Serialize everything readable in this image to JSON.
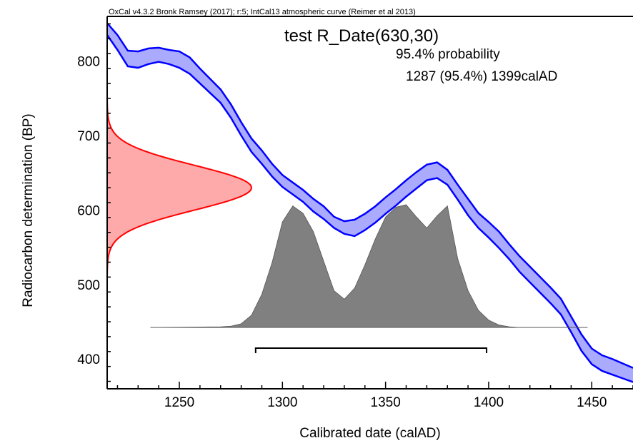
{
  "chart_data": {
    "type": "area",
    "header": "OxCal v4.3.2 Bronk Ramsey (2017); r:5; IntCal13 atmospheric curve (Reimer et al 2013)",
    "title": "test R_Date(630,30)",
    "probability_label": "95.4% probability",
    "range_label": "1287 (95.4%) 1399calAD",
    "xlabel": "Calibrated date (calAD)",
    "ylabel": "Radiocarbon determination (BP)",
    "xlim": [
      1215,
      1470
    ],
    "ylim": [
      360,
      860
    ],
    "x_ticks": [
      1250,
      1300,
      1350,
      1400,
      1450
    ],
    "y_ticks": [
      400,
      500,
      600,
      700,
      800
    ],
    "colors": {
      "curve_fill": "#aaaaff",
      "curve_line": "#0000ff",
      "date_fill": "#ffaaaa",
      "date_line": "#ff0000",
      "posterior_fill": "#808080"
    },
    "calibration_curve": {
      "x": [
        1215,
        1220,
        1225,
        1230,
        1235,
        1240,
        1245,
        1250,
        1255,
        1260,
        1265,
        1270,
        1275,
        1280,
        1285,
        1290,
        1295,
        1300,
        1305,
        1310,
        1315,
        1320,
        1325,
        1330,
        1335,
        1340,
        1345,
        1350,
        1355,
        1360,
        1365,
        1370,
        1375,
        1380,
        1385,
        1390,
        1395,
        1400,
        1405,
        1410,
        1415,
        1420,
        1425,
        1430,
        1435,
        1440,
        1445,
        1450,
        1455,
        1460,
        1465,
        1470
      ],
      "upper": [
        851,
        835,
        814,
        813,
        817,
        818,
        815,
        813,
        805,
        790,
        776,
        762,
        742,
        718,
        696,
        680,
        662,
        647,
        637,
        627,
        615,
        605,
        591,
        585,
        587,
        595,
        605,
        617,
        628,
        640,
        651,
        661,
        664,
        654,
        634,
        615,
        596,
        584,
        571,
        554,
        538,
        524,
        510,
        496,
        481,
        457,
        433,
        414,
        405,
        400,
        394,
        388
      ],
      "lower": [
        835,
        815,
        793,
        791,
        796,
        799,
        796,
        791,
        783,
        770,
        757,
        744,
        724,
        700,
        678,
        662,
        645,
        631,
        621,
        611,
        598,
        588,
        576,
        568,
        565,
        573,
        583,
        595,
        606,
        618,
        629,
        640,
        643,
        634,
        614,
        593,
        576,
        563,
        549,
        534,
        517,
        503,
        489,
        475,
        460,
        436,
        411,
        393,
        384,
        379,
        374,
        369
      ]
    },
    "radiocarbon_date": {
      "mean": 630,
      "sd": 30
    },
    "posterior": {
      "x": [
        1236,
        1270,
        1275,
        1280,
        1285,
        1290,
        1295,
        1300,
        1305,
        1310,
        1315,
        1320,
        1325,
        1330,
        1335,
        1340,
        1345,
        1350,
        1355,
        1360,
        1365,
        1370,
        1375,
        1380,
        1385,
        1390,
        1395,
        1400,
        1405,
        1410,
        1415,
        1420,
        1448
      ],
      "y": [
        0,
        0.005,
        0.01,
        0.03,
        0.1,
        0.27,
        0.53,
        0.86,
        0.99,
        0.93,
        0.78,
        0.54,
        0.3,
        0.23,
        0.32,
        0.51,
        0.72,
        0.9,
        0.98,
        1.0,
        0.9,
        0.81,
        0.91,
        0.99,
        0.56,
        0.3,
        0.14,
        0.06,
        0.02,
        0.005,
        0,
        0,
        0
      ]
    },
    "range_bar": {
      "from": 1287,
      "to": 1399
    }
  }
}
